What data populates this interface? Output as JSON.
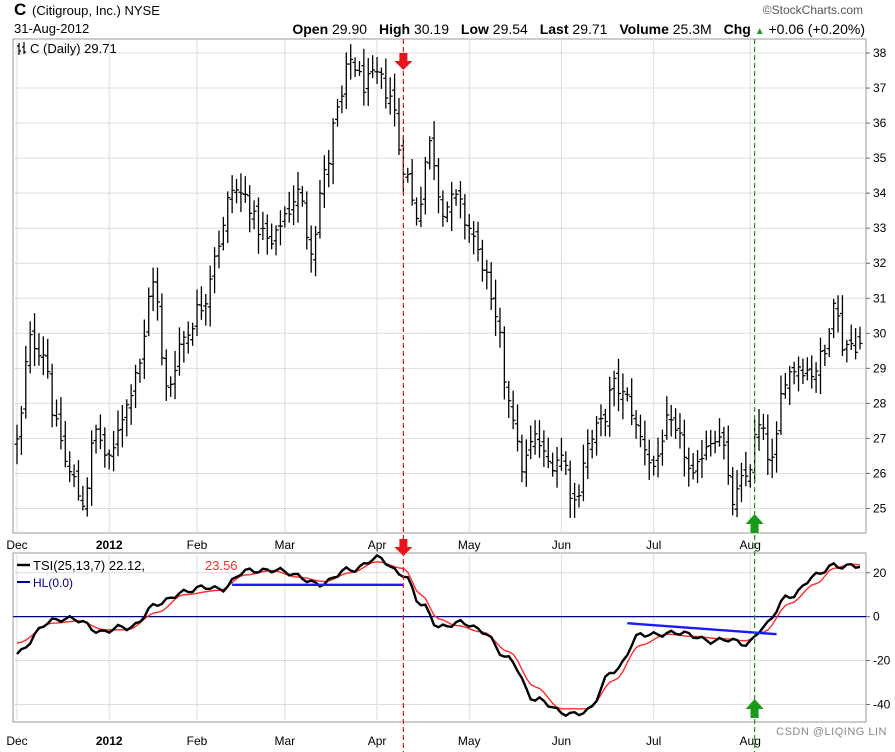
{
  "header": {
    "ticker": "C",
    "company": "(Citigroup, Inc.) NYSE",
    "date": "31-Aug-2012",
    "brand": "©StockCharts.com",
    "open_label": "Open",
    "open_value": "29.90",
    "high_label": "High",
    "high_value": "30.19",
    "low_label": "Low",
    "low_value": "29.54",
    "last_label": "Last",
    "last_value": "29.71",
    "volume_label": "Volume",
    "volume_value": "25.3M",
    "chg_label": "Chg",
    "chg_value": "+0.06 (+0.20%)",
    "chg_arrow": "▲"
  },
  "price_panel": {
    "legend": "C (Daily) 29.71",
    "legend_icon": "candle-bars-icon"
  },
  "tsi_panel": {
    "legend_tsi": "TSI(25,13,7) 22.12,",
    "legend_tsi_signal": "23.56",
    "legend_hl": "HL(0.0)"
  },
  "watermark": "CSDN @LIQING LIN",
  "colors": {
    "price_bar": "#000000",
    "tsi_line": "#000000",
    "signal_line": "#ff2a2a",
    "hl_line": "#00008b",
    "trend_line": "#1a1aff",
    "sell_marker": "#e8141a",
    "buy_marker": "#1a9a1a",
    "grid": "#dcdcdc"
  },
  "chart_data": [
    {
      "type": "ohlc",
      "name": "C (Daily)",
      "x_ticks": [
        "Dec",
        "2012",
        "Feb",
        "Mar",
        "Apr",
        "May",
        "Jun",
        "Jul",
        "Aug"
      ],
      "y_ticks": [
        25,
        26,
        27,
        28,
        29,
        30,
        31,
        32,
        33,
        34,
        35,
        36,
        37,
        38
      ],
      "ylim": [
        24.3,
        38.4
      ],
      "n_bars": 193,
      "close_anchors": [
        {
          "i": 0,
          "c": 26.9
        },
        {
          "i": 3,
          "c": 29.8
        },
        {
          "i": 6,
          "c": 29.5
        },
        {
          "i": 9,
          "c": 27.3
        },
        {
          "i": 12,
          "c": 26.0
        },
        {
          "i": 15,
          "c": 25.2
        },
        {
          "i": 18,
          "c": 27.2
        },
        {
          "i": 21,
          "c": 26.3
        },
        {
          "i": 24,
          "c": 27.7
        },
        {
          "i": 28,
          "c": 29.2
        },
        {
          "i": 31,
          "c": 31.6
        },
        {
          "i": 34,
          "c": 28.4
        },
        {
          "i": 38,
          "c": 29.9
        },
        {
          "i": 42,
          "c": 30.8
        },
        {
          "i": 46,
          "c": 32.6
        },
        {
          "i": 49,
          "c": 34.1
        },
        {
          "i": 52,
          "c": 33.9
        },
        {
          "i": 55,
          "c": 33.0
        },
        {
          "i": 58,
          "c": 32.5
        },
        {
          "i": 61,
          "c": 33.4
        },
        {
          "i": 64,
          "c": 34.0
        },
        {
          "i": 67,
          "c": 32.5
        },
        {
          "i": 70,
          "c": 34.5
        },
        {
          "i": 73,
          "c": 36.3
        },
        {
          "i": 76,
          "c": 37.8
        },
        {
          "i": 79,
          "c": 37.1
        },
        {
          "i": 82,
          "c": 37.3
        },
        {
          "i": 85,
          "c": 36.8
        },
        {
          "i": 88,
          "c": 34.8
        },
        {
          "i": 91,
          "c": 33.4
        },
        {
          "i": 94,
          "c": 35.4
        },
        {
          "i": 97,
          "c": 33.6
        },
        {
          "i": 100,
          "c": 33.8
        },
        {
          "i": 103,
          "c": 33.0
        },
        {
          "i": 106,
          "c": 32.0
        },
        {
          "i": 109,
          "c": 30.3
        },
        {
          "i": 112,
          "c": 28.2
        },
        {
          "i": 115,
          "c": 26.2
        },
        {
          "i": 118,
          "c": 27.0
        },
        {
          "i": 121,
          "c": 26.3
        },
        {
          "i": 124,
          "c": 26.5
        },
        {
          "i": 127,
          "c": 25.2
        },
        {
          "i": 130,
          "c": 26.8
        },
        {
          "i": 133,
          "c": 27.4
        },
        {
          "i": 136,
          "c": 28.5
        },
        {
          "i": 139,
          "c": 28.1
        },
        {
          "i": 142,
          "c": 27.0
        },
        {
          "i": 145,
          "c": 26.2
        },
        {
          "i": 148,
          "c": 27.4
        },
        {
          "i": 151,
          "c": 26.9
        },
        {
          "i": 154,
          "c": 25.8
        },
        {
          "i": 157,
          "c": 26.9
        },
        {
          "i": 160,
          "c": 27.2
        },
        {
          "i": 163,
          "c": 25.2
        },
        {
          "i": 166,
          "c": 25.9
        },
        {
          "i": 169,
          "c": 27.3
        },
        {
          "i": 172,
          "c": 26.3
        },
        {
          "i": 175,
          "c": 28.8
        },
        {
          "i": 178,
          "c": 29.1
        },
        {
          "i": 181,
          "c": 28.9
        },
        {
          "i": 184,
          "c": 29.4
        },
        {
          "i": 186,
          "c": 31.1
        },
        {
          "i": 188,
          "c": 29.7
        },
        {
          "i": 190,
          "c": 29.7
        },
        {
          "i": 192,
          "c": 29.71
        }
      ],
      "last_bar": {
        "open": 29.9,
        "high": 30.19,
        "low": 29.54,
        "close": 29.71
      }
    },
    {
      "type": "line",
      "name": "TSI(25,13,7)",
      "y_ticks": [
        20,
        0,
        -20,
        -40
      ],
      "ylim": [
        -48,
        29
      ],
      "series": [
        {
          "name": "TSI(25,13,7)",
          "anchors": [
            {
              "i": 0,
              "v": -17
            },
            {
              "i": 8,
              "v": -1
            },
            {
              "i": 14,
              "v": -2
            },
            {
              "i": 20,
              "v": -7
            },
            {
              "i": 25,
              "v": -5
            },
            {
              "i": 32,
              "v": 5
            },
            {
              "i": 38,
              "v": 12
            },
            {
              "i": 46,
              "v": 13
            },
            {
              "i": 52,
              "v": 20
            },
            {
              "i": 58,
              "v": 22
            },
            {
              "i": 64,
              "v": 18
            },
            {
              "i": 70,
              "v": 15
            },
            {
              "i": 76,
              "v": 22
            },
            {
              "i": 82,
              "v": 26
            },
            {
              "i": 88,
              "v": 20
            },
            {
              "i": 92,
              "v": 5
            },
            {
              "i": 96,
              "v": -4
            },
            {
              "i": 100,
              "v": -3
            },
            {
              "i": 106,
              "v": -6
            },
            {
              "i": 112,
              "v": -20
            },
            {
              "i": 118,
              "v": -37
            },
            {
              "i": 124,
              "v": -44
            },
            {
              "i": 130,
              "v": -43
            },
            {
              "i": 136,
              "v": -24
            },
            {
              "i": 142,
              "v": -9
            },
            {
              "i": 148,
              "v": -7
            },
            {
              "i": 154,
              "v": -9
            },
            {
              "i": 160,
              "v": -11
            },
            {
              "i": 166,
              "v": -12
            },
            {
              "i": 170,
              "v": -5
            },
            {
              "i": 176,
              "v": 10
            },
            {
              "i": 182,
              "v": 18
            },
            {
              "i": 186,
              "v": 24
            },
            {
              "i": 190,
              "v": 23
            },
            {
              "i": 192,
              "v": 22.12
            }
          ]
        },
        {
          "name": "Signal",
          "anchors": [
            {
              "i": 0,
              "v": -12
            },
            {
              "i": 8,
              "v": -3
            },
            {
              "i": 14,
              "v": -2
            },
            {
              "i": 20,
              "v": -6
            },
            {
              "i": 25,
              "v": -6
            },
            {
              "i": 32,
              "v": 2
            },
            {
              "i": 38,
              "v": 10
            },
            {
              "i": 46,
              "v": 12
            },
            {
              "i": 52,
              "v": 19
            },
            {
              "i": 58,
              "v": 21
            },
            {
              "i": 64,
              "v": 18
            },
            {
              "i": 70,
              "v": 16
            },
            {
              "i": 76,
              "v": 20
            },
            {
              "i": 82,
              "v": 25
            },
            {
              "i": 88,
              "v": 22
            },
            {
              "i": 92,
              "v": 10
            },
            {
              "i": 96,
              "v": -1
            },
            {
              "i": 100,
              "v": -4
            },
            {
              "i": 106,
              "v": -7
            },
            {
              "i": 112,
              "v": -16
            },
            {
              "i": 118,
              "v": -32
            },
            {
              "i": 124,
              "v": -42
            },
            {
              "i": 130,
              "v": -42
            },
            {
              "i": 136,
              "v": -29
            },
            {
              "i": 142,
              "v": -13
            },
            {
              "i": 148,
              "v": -8
            },
            {
              "i": 154,
              "v": -9
            },
            {
              "i": 160,
              "v": -10
            },
            {
              "i": 166,
              "v": -11
            },
            {
              "i": 170,
              "v": -7
            },
            {
              "i": 176,
              "v": 6
            },
            {
              "i": 182,
              "v": 15
            },
            {
              "i": 186,
              "v": 22
            },
            {
              "i": 190,
              "v": 24
            },
            {
              "i": 192,
              "v": 23.56
            }
          ]
        }
      ],
      "hl_level": 0,
      "trend_lines": [
        {
          "i1": 49,
          "v1": 14.5,
          "i2": 88,
          "v2": 14.5
        },
        {
          "i1": 139,
          "v1": -3,
          "i2": 173,
          "v2": -8
        }
      ]
    }
  ],
  "signals": [
    {
      "type": "sell",
      "bar": 88
    },
    {
      "type": "buy",
      "bar": 168
    }
  ]
}
